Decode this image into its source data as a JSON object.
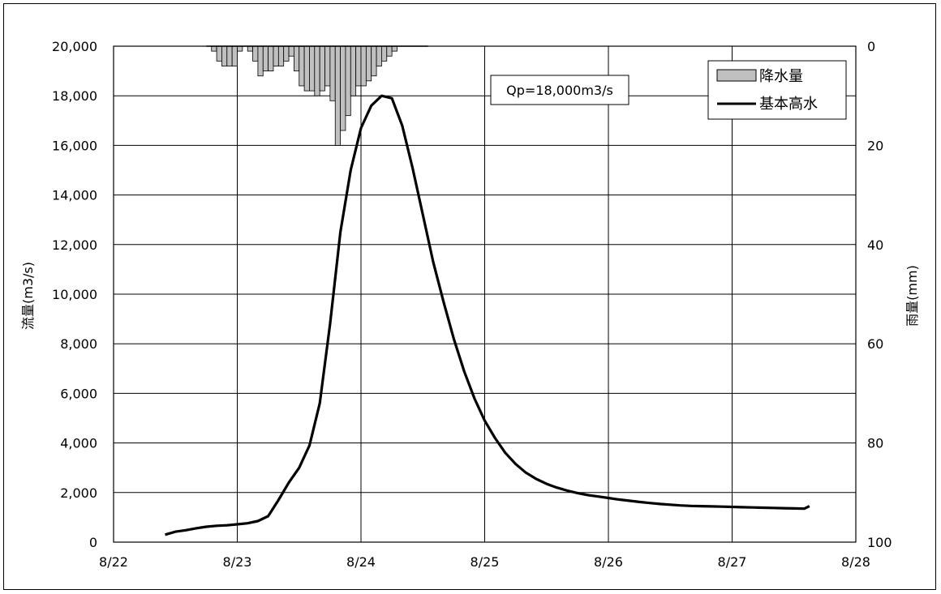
{
  "chart_data": {
    "type": "line",
    "title": "",
    "x_tick_labels": [
      "8/22",
      "8/23",
      "8/24",
      "8/25",
      "8/26",
      "8/27",
      "8/28"
    ],
    "x_range_days": [
      "8/22",
      "8/28"
    ],
    "ylabel_left": "流量(m3/s)",
    "ylabel_right": "雨量(mm)",
    "ylim_left": [
      0,
      20000
    ],
    "ylim_right": [
      0,
      100
    ],
    "right_axis_inverted": true,
    "y_ticks_left": [
      "0",
      "2,000",
      "4,000",
      "6,000",
      "8,000",
      "10,000",
      "12,000",
      "14,000",
      "16,000",
      "18,000",
      "20,000"
    ],
    "y_ticks_right": [
      "100",
      "80",
      "60",
      "40",
      "20",
      "0"
    ],
    "grid": true,
    "legend_position": "top-right",
    "annotation": "Qp=18,000m3/s",
    "rainfall_series": {
      "name": "降水量",
      "color": "#c0c0c0",
      "x": [
        "8/22 18:00",
        "8/22 19:00",
        "8/22 20:00",
        "8/22 21:00",
        "8/22 22:00",
        "8/22 23:00",
        "8/23 00:00",
        "8/23 01:00",
        "8/23 02:00",
        "8/23 03:00",
        "8/23 04:00",
        "8/23 05:00",
        "8/23 06:00",
        "8/23 07:00",
        "8/23 08:00",
        "8/23 09:00",
        "8/23 10:00",
        "8/23 11:00",
        "8/23 12:00",
        "8/23 13:00",
        "8/23 14:00",
        "8/23 15:00",
        "8/23 16:00",
        "8/23 17:00",
        "8/23 18:00",
        "8/23 19:00",
        "8/23 20:00",
        "8/23 21:00",
        "8/23 22:00",
        "8/23 23:00",
        "8/24 00:00",
        "8/24 01:00",
        "8/24 02:00",
        "8/24 03:00",
        "8/24 04:00",
        "8/24 05:00",
        "8/24 06:00",
        "8/24 07:00",
        "8/24 08:00",
        "8/24 09:00",
        "8/24 10:00",
        "8/24 11:00",
        "8/24 12:00"
      ],
      "values": [
        0,
        1,
        3,
        4,
        4,
        4,
        1,
        0,
        1,
        3,
        6,
        5,
        5,
        4,
        4,
        3,
        2,
        5,
        8,
        9,
        9,
        10,
        9,
        8,
        11,
        20,
        17,
        14,
        10,
        8,
        8,
        7,
        6,
        4,
        3,
        2,
        1,
        0,
        0,
        0,
        0,
        0,
        0
      ]
    },
    "discharge_series": {
      "name": "基本高水",
      "color": "#000000",
      "x": [
        "8/22 10:00",
        "8/22 12:00",
        "8/22 14:00",
        "8/22 16:00",
        "8/22 18:00",
        "8/22 20:00",
        "8/22 22:00",
        "8/23 00:00",
        "8/23 02:00",
        "8/23 04:00",
        "8/23 06:00",
        "8/23 08:00",
        "8/23 10:00",
        "8/23 12:00",
        "8/23 14:00",
        "8/23 16:00",
        "8/23 18:00",
        "8/23 20:00",
        "8/23 22:00",
        "8/24 00:00",
        "8/24 02:00",
        "8/24 04:00",
        "8/24 06:00",
        "8/24 08:00",
        "8/24 10:00",
        "8/24 12:00",
        "8/24 14:00",
        "8/24 16:00",
        "8/24 18:00",
        "8/24 20:00",
        "8/24 22:00",
        "8/25 00:00",
        "8/25 02:00",
        "8/25 04:00",
        "8/25 06:00",
        "8/25 08:00",
        "8/25 10:00",
        "8/25 12:00",
        "8/25 14:00",
        "8/25 16:00",
        "8/25 18:00",
        "8/25 20:00",
        "8/25 22:00",
        "8/26 00:00",
        "8/26 02:00",
        "8/26 04:00",
        "8/26 06:00",
        "8/26 08:00",
        "8/26 10:00",
        "8/26 12:00",
        "8/26 14:00",
        "8/26 16:00",
        "8/26 18:00",
        "8/26 20:00",
        "8/26 22:00",
        "8/27 00:00",
        "8/27 02:00",
        "8/27 04:00",
        "8/27 06:00",
        "8/27 08:00",
        "8/27 10:00",
        "8/27 12:00",
        "8/27 14:00",
        "8/27 15:00"
      ],
      "values": [
        300,
        420,
        480,
        560,
        620,
        660,
        680,
        720,
        760,
        850,
        1050,
        1700,
        2400,
        3000,
        3900,
        5600,
        8800,
        12500,
        15000,
        16700,
        17600,
        18000,
        17900,
        16800,
        15100,
        13200,
        11300,
        9700,
        8200,
        6900,
        5800,
        4900,
        4200,
        3600,
        3150,
        2800,
        2550,
        2350,
        2200,
        2080,
        1980,
        1900,
        1840,
        1780,
        1720,
        1670,
        1620,
        1580,
        1540,
        1510,
        1480,
        1460,
        1450,
        1440,
        1430,
        1420,
        1410,
        1400,
        1390,
        1380,
        1370,
        1360,
        1350,
        1450
      ]
    }
  }
}
